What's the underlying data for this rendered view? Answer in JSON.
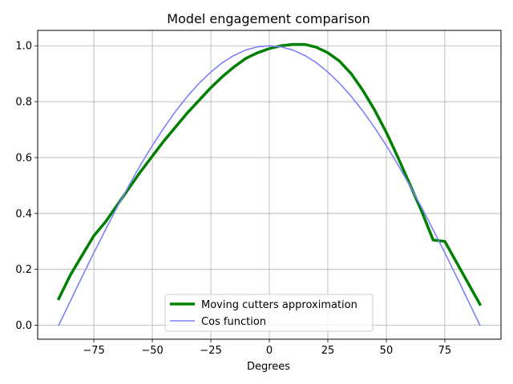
{
  "chart_data": {
    "type": "line",
    "title": "Model engagement comparison",
    "xlabel": "Degrees",
    "ylabel": "",
    "xlim": [
      -99,
      99
    ],
    "ylim": [
      -0.05,
      1.055
    ],
    "xticks": [
      -75,
      -50,
      -25,
      0,
      25,
      50,
      75
    ],
    "xtick_labels": [
      "−75",
      "−50",
      "−25",
      "0",
      "25",
      "50",
      "75"
    ],
    "yticks": [
      0.0,
      0.2,
      0.4,
      0.6,
      0.8,
      1.0
    ],
    "ytick_labels": [
      "0.0",
      "0.2",
      "0.4",
      "0.6",
      "0.8",
      "1.0"
    ],
    "grid": true,
    "legend_position": "lower center",
    "series": [
      {
        "name": "Moving cutters approximation",
        "color": "#008000",
        "x": [
          -90,
          -85,
          -80,
          -75,
          -70,
          -65,
          -60,
          -55,
          -50,
          -45,
          -40,
          -35,
          -30,
          -25,
          -20,
          -15,
          -10,
          -5,
          0,
          5,
          10,
          15,
          20,
          25,
          30,
          35,
          40,
          45,
          50,
          55,
          60,
          65,
          70,
          75,
          80,
          85,
          90
        ],
        "y": [
          0.095,
          0.18,
          0.25,
          0.32,
          0.37,
          0.43,
          0.49,
          0.55,
          0.605,
          0.66,
          0.71,
          0.76,
          0.805,
          0.85,
          0.89,
          0.925,
          0.955,
          0.975,
          0.99,
          1.0,
          1.005,
          1.005,
          0.995,
          0.975,
          0.945,
          0.9,
          0.84,
          0.77,
          0.69,
          0.6,
          0.505,
          0.41,
          0.305,
          0.3,
          0.225,
          0.15,
          0.075
        ]
      },
      {
        "name": "Cos function",
        "color": "#7f7fff",
        "x": [
          -90,
          -85,
          -80,
          -75,
          -70,
          -65,
          -60,
          -55,
          -50,
          -45,
          -40,
          -35,
          -30,
          -25,
          -20,
          -15,
          -10,
          -5,
          0,
          5,
          10,
          15,
          20,
          25,
          30,
          35,
          40,
          45,
          50,
          55,
          60,
          65,
          70,
          75,
          80,
          85,
          90
        ],
        "y": [
          0.0,
          0.087,
          0.174,
          0.259,
          0.342,
          0.423,
          0.5,
          0.574,
          0.643,
          0.707,
          0.766,
          0.819,
          0.866,
          0.906,
          0.94,
          0.966,
          0.985,
          0.996,
          1.0,
          0.996,
          0.985,
          0.966,
          0.94,
          0.906,
          0.866,
          0.819,
          0.766,
          0.707,
          0.643,
          0.574,
          0.5,
          0.423,
          0.342,
          0.259,
          0.174,
          0.087,
          0.0
        ]
      }
    ]
  }
}
